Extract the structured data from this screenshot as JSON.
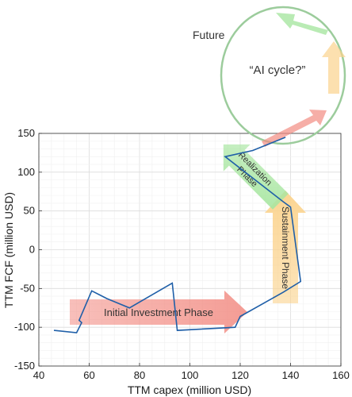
{
  "chart_data": {
    "type": "line",
    "xlabel": "TTM capex (million USD)",
    "ylabel": "TTM FCF (million USD)",
    "xlim": [
      40,
      160
    ],
    "ylim": [
      -150,
      150
    ],
    "x_ticks": [
      40,
      60,
      80,
      100,
      120,
      140,
      160
    ],
    "y_ticks": [
      -150,
      -100,
      -50,
      0,
      50,
      100,
      150
    ],
    "x_tick_labels": [
      "40",
      "60",
      "80",
      "100",
      "120",
      "140",
      "160"
    ],
    "y_tick_labels": [
      "-150",
      "-100",
      "-50",
      "0",
      "50",
      "100",
      "150"
    ],
    "grid": true,
    "series": [
      {
        "color": "#1f5fa8",
        "x": [
          46,
          55,
          57,
          56,
          61,
          67,
          76,
          93,
          95,
          118,
          120,
          137,
          144,
          140,
          137,
          114,
          125,
          138
        ],
        "y": [
          -104,
          -107,
          -94,
          -91,
          -53,
          -63,
          -75,
          -43,
          -104,
          -100,
          -86,
          -55,
          -41,
          55,
          62,
          120,
          128,
          145
        ]
      }
    ],
    "annotations": [
      {
        "text": "Initial Investment Phase",
        "color": "#f28b82",
        "style": "arrow"
      },
      {
        "text": "Sustainment Phase",
        "color": "#fbd38d",
        "style": "arrow"
      },
      {
        "text": "Realization Phase",
        "color": "#a8e6a1",
        "style": "arrow"
      },
      {
        "text": "Future",
        "color": "#555555",
        "style": "label"
      },
      {
        "text": "“AI cycle?”",
        "color": "#a5d6a7",
        "style": "circle"
      }
    ]
  }
}
